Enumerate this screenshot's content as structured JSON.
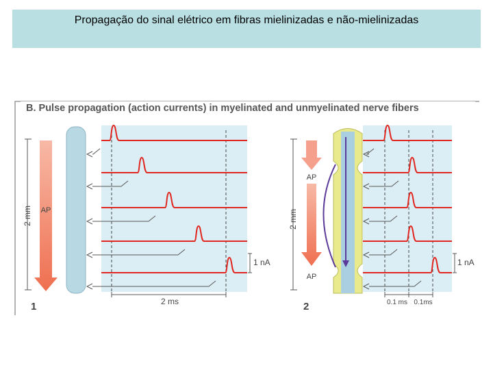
{
  "header": {
    "title": "Propagação do sinal elétrico em fibras mielinizadas e não-mielinizadas"
  },
  "figure": {
    "heading": "B. Pulse propagation (action currents) in myelinated and unmyelinated nerve fibers",
    "panels": [
      {
        "number": "1",
        "distance": "2 mm",
        "ap_labels": [
          "AP"
        ],
        "current_scale": "1 nA",
        "time_labels": [
          "2 ms"
        ]
      },
      {
        "number": "2",
        "distance": "2 mm",
        "ap_labels": [
          "AP",
          "AP"
        ],
        "current_scale": "1 nA",
        "time_labels": [
          "0.1 ms",
          "0.1ms"
        ]
      }
    ]
  }
}
